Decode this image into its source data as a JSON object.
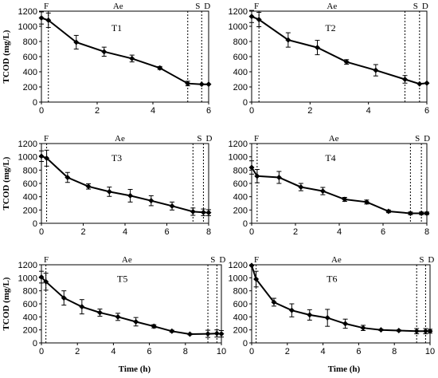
{
  "figure": {
    "ylabel": "TCOD (mg/L)",
    "xlabel": "Time (h)"
  },
  "chart_data": [
    {
      "type": "line",
      "title": "T1",
      "x": [
        0,
        0.25,
        1.25,
        2.25,
        3.25,
        4.25,
        5.25,
        5.75,
        6
      ],
      "y": [
        1110,
        1080,
        790,
        665,
        575,
        450,
        245,
        235,
        235
      ],
      "err": [
        80,
        95,
        90,
        60,
        45,
        20,
        30,
        0,
        0
      ],
      "xlim": [
        0,
        6
      ],
      "ylim": [
        0,
        1200
      ],
      "xticks": [
        0,
        2,
        4,
        6
      ],
      "yticks": [
        0,
        200,
        400,
        600,
        800,
        1000,
        1200
      ],
      "phases": {
        "labels": [
          "F",
          "Ae",
          "S",
          "D"
        ],
        "boundaries": [
          0.25,
          5.25,
          5.75
        ]
      },
      "xlabel": "",
      "ylabel": "TCOD (mg/L)"
    },
    {
      "type": "line",
      "title": "T2",
      "x": [
        0,
        0.25,
        1.25,
        2.25,
        3.25,
        4.25,
        5.25,
        5.75,
        6
      ],
      "y": [
        1130,
        1090,
        820,
        720,
        530,
        420,
        300,
        240,
        250
      ],
      "err": [
        80,
        95,
        95,
        95,
        30,
        75,
        50,
        0,
        0
      ],
      "xlim": [
        0,
        6
      ],
      "ylim": [
        0,
        1200
      ],
      "xticks": [
        0,
        2,
        4,
        6
      ],
      "yticks": [
        0,
        200,
        400,
        600,
        800,
        1000,
        1200
      ],
      "phases": {
        "labels": [
          "F",
          "Ae",
          "S",
          "D"
        ],
        "boundaries": [
          0.25,
          5.25,
          5.75
        ]
      },
      "xlabel": "",
      "ylabel": ""
    },
    {
      "type": "line",
      "title": "T3",
      "x": [
        0,
        0.25,
        1.25,
        2.25,
        3.25,
        4.25,
        5.25,
        6.25,
        7.25,
        7.75,
        8
      ],
      "y": [
        1010,
        980,
        690,
        555,
        475,
        415,
        340,
        260,
        175,
        165,
        160
      ],
      "err": [
        80,
        120,
        75,
        40,
        70,
        95,
        75,
        60,
        55,
        50,
        45
      ],
      "xlim": [
        0,
        8
      ],
      "ylim": [
        0,
        1200
      ],
      "xticks": [
        0,
        2,
        4,
        6,
        8
      ],
      "yticks": [
        0,
        200,
        400,
        600,
        800,
        1000,
        1200
      ],
      "phases": {
        "labels": [
          "F",
          "Ae",
          "S",
          "D"
        ],
        "boundaries": [
          0.25,
          7.25,
          7.75
        ]
      },
      "xlabel": "",
      "ylabel": "TCOD (mg/L)"
    },
    {
      "type": "line",
      "title": "T4",
      "x": [
        0,
        0.25,
        1.25,
        2.25,
        3.25,
        4.25,
        5.25,
        6.25,
        7.25,
        7.75,
        8
      ],
      "y": [
        840,
        710,
        690,
        545,
        485,
        360,
        320,
        180,
        150,
        150,
        150
      ],
      "err": [
        100,
        100,
        90,
        55,
        55,
        30,
        30,
        20,
        20,
        20,
        20
      ],
      "xlim": [
        0,
        8
      ],
      "ylim": [
        0,
        1200
      ],
      "xticks": [
        0,
        2,
        4,
        6,
        8
      ],
      "yticks": [
        0,
        200,
        400,
        600,
        800,
        1000,
        1200
      ],
      "phases": {
        "labels": [
          "F",
          "Ae",
          "S",
          "D"
        ],
        "boundaries": [
          0.25,
          7.25,
          7.75
        ]
      },
      "xlabel": "",
      "ylabel": ""
    },
    {
      "type": "line",
      "title": "T5",
      "x": [
        0,
        0.25,
        1.25,
        2.25,
        3.25,
        4.25,
        5.25,
        6.25,
        7.25,
        8.25,
        9.25,
        9.75,
        10
      ],
      "y": [
        1010,
        940,
        690,
        555,
        465,
        400,
        325,
        255,
        180,
        135,
        140,
        145,
        140
      ],
      "err": [
        90,
        130,
        110,
        110,
        55,
        55,
        65,
        25,
        15,
        10,
        55,
        55,
        50
      ],
      "xlim": [
        0,
        10
      ],
      "ylim": [
        0,
        1200
      ],
      "xticks": [
        0,
        2,
        4,
        6,
        8,
        10
      ],
      "yticks": [
        0,
        200,
        400,
        600,
        800,
        1000,
        1200
      ],
      "phases": {
        "labels": [
          "F",
          "Ae",
          "S",
          "D"
        ],
        "boundaries": [
          0.25,
          9.25,
          9.75
        ]
      },
      "xlabel": "Time (h)",
      "ylabel": "TCOD (mg/L)"
    },
    {
      "type": "line",
      "title": "T6",
      "x": [
        0,
        0.25,
        1.25,
        2.25,
        3.25,
        4.25,
        5.25,
        6.25,
        7.25,
        8.25,
        9.25,
        9.75,
        10
      ],
      "y": [
        1190,
        980,
        625,
        500,
        430,
        385,
        295,
        230,
        200,
        190,
        180,
        180,
        180
      ],
      "err": [
        0,
        120,
        60,
        100,
        80,
        130,
        70,
        40,
        10,
        10,
        40,
        40,
        30
      ],
      "xlim": [
        0,
        10
      ],
      "ylim": [
        0,
        1200
      ],
      "xticks": [
        0,
        2,
        4,
        6,
        8,
        10
      ],
      "yticks": [
        0,
        200,
        400,
        600,
        800,
        1000,
        1200
      ],
      "phases": {
        "labels": [
          "F",
          "Ae",
          "S",
          "D"
        ],
        "boundaries": [
          0.25,
          9.25,
          9.75
        ]
      },
      "xlabel": "Time (h)",
      "ylabel": ""
    }
  ]
}
